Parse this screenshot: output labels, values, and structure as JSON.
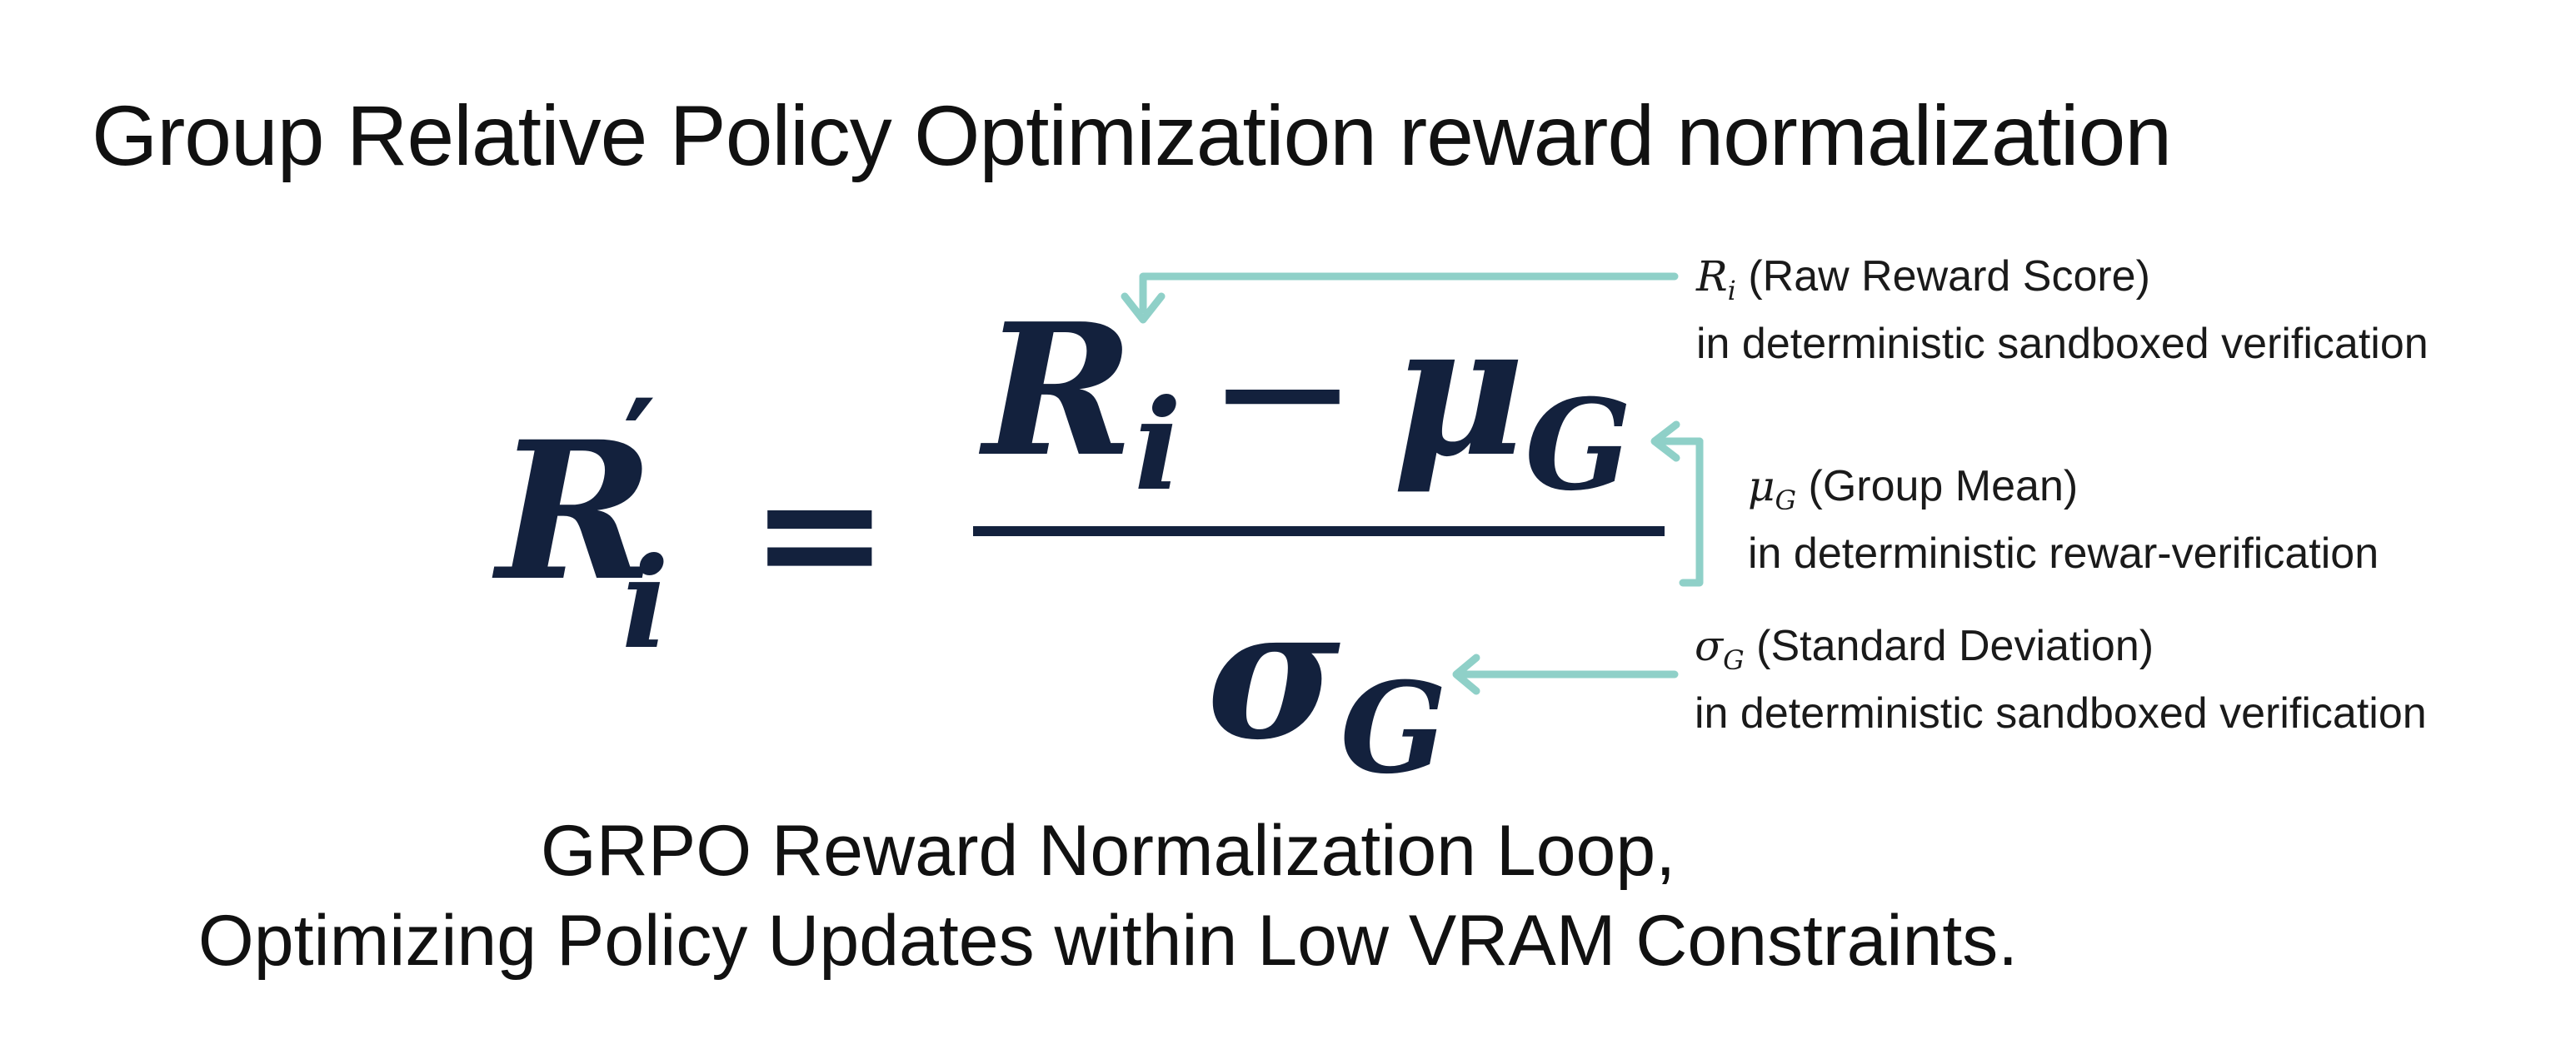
{
  "title": "Group Relative Policy Optimization reward normalization",
  "formula": {
    "lhs_symbol": "R",
    "lhs_prime": "′",
    "lhs_subscript": "i",
    "equals": "=",
    "numerator_symbol": "R",
    "numerator_subscript": "i",
    "minus": "−",
    "mean_symbol": "μ",
    "mean_subscript": "G",
    "denominator_symbol": "σ",
    "denominator_subscript": "G"
  },
  "annotations": [
    {
      "symbol": "R",
      "subscript": "i",
      "label": "(Raw Reward Score)",
      "detail": "in deterministic sandboxed verification"
    },
    {
      "symbol": "μ",
      "subscript": "G",
      "label": "(Group Mean)",
      "detail": "in deterministic rewar-verification"
    },
    {
      "symbol": "σ",
      "subscript": "G",
      "label": "(Standard Deviation)",
      "detail": "in deterministic sandboxed verification"
    }
  ],
  "caption": {
    "line1": "GRPO Reward Normalization Loop,",
    "line2": "Optimizing Policy Updates within Low VRAM Constraints."
  },
  "colors": {
    "formula": "#13213d",
    "arrow": "#8fd0c8",
    "text": "#111111",
    "background": "#ffffff"
  }
}
